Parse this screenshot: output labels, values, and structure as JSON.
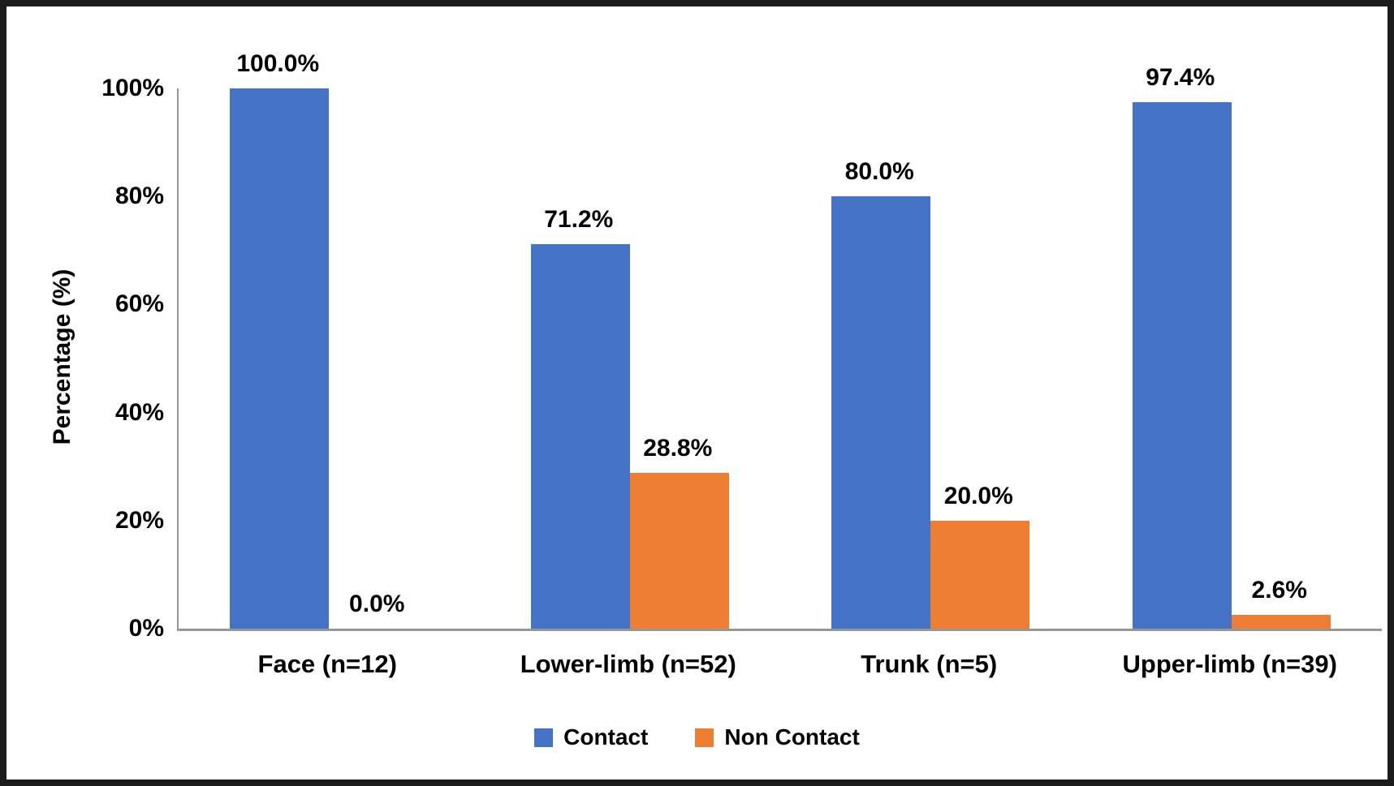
{
  "chart_data": {
    "type": "bar",
    "title": "",
    "xlabel": "",
    "ylabel": "Percentage (%)",
    "categories": [
      "Face (n=12)",
      "Lower-limb (n=52)",
      "Trunk (n=5)",
      "Upper-limb (n=39)"
    ],
    "series": [
      {
        "name": "Contact",
        "color": "#4472C4",
        "values": [
          100.0,
          71.2,
          80.0,
          97.4
        ]
      },
      {
        "name": "Non Contact",
        "color": "#ED7D31",
        "values": [
          0.0,
          28.8,
          20.0,
          2.6
        ]
      }
    ],
    "value_labels": [
      [
        "100.0%",
        "71.2%",
        "80.0%",
        "97.4%"
      ],
      [
        "0.0%",
        "28.8%",
        "20.0%",
        "2.6%"
      ]
    ],
    "y_ticks": {
      "values": [
        0,
        20,
        40,
        60,
        80,
        100
      ],
      "labels": [
        "0%",
        "20%",
        "40%",
        "60%",
        "80%",
        "100%"
      ]
    },
    "ylim": [
      0,
      100
    ],
    "grid": false,
    "legend": {
      "position": "bottom-center",
      "entries": [
        {
          "label": "Contact",
          "color": "#4472C4"
        },
        {
          "label": "Non Contact",
          "color": "#ED7D31"
        }
      ]
    },
    "colors": {
      "axis_line": "#969696",
      "text": "#000000",
      "frame_border": "#1C1C1C",
      "background": "#FFFFFF"
    }
  }
}
